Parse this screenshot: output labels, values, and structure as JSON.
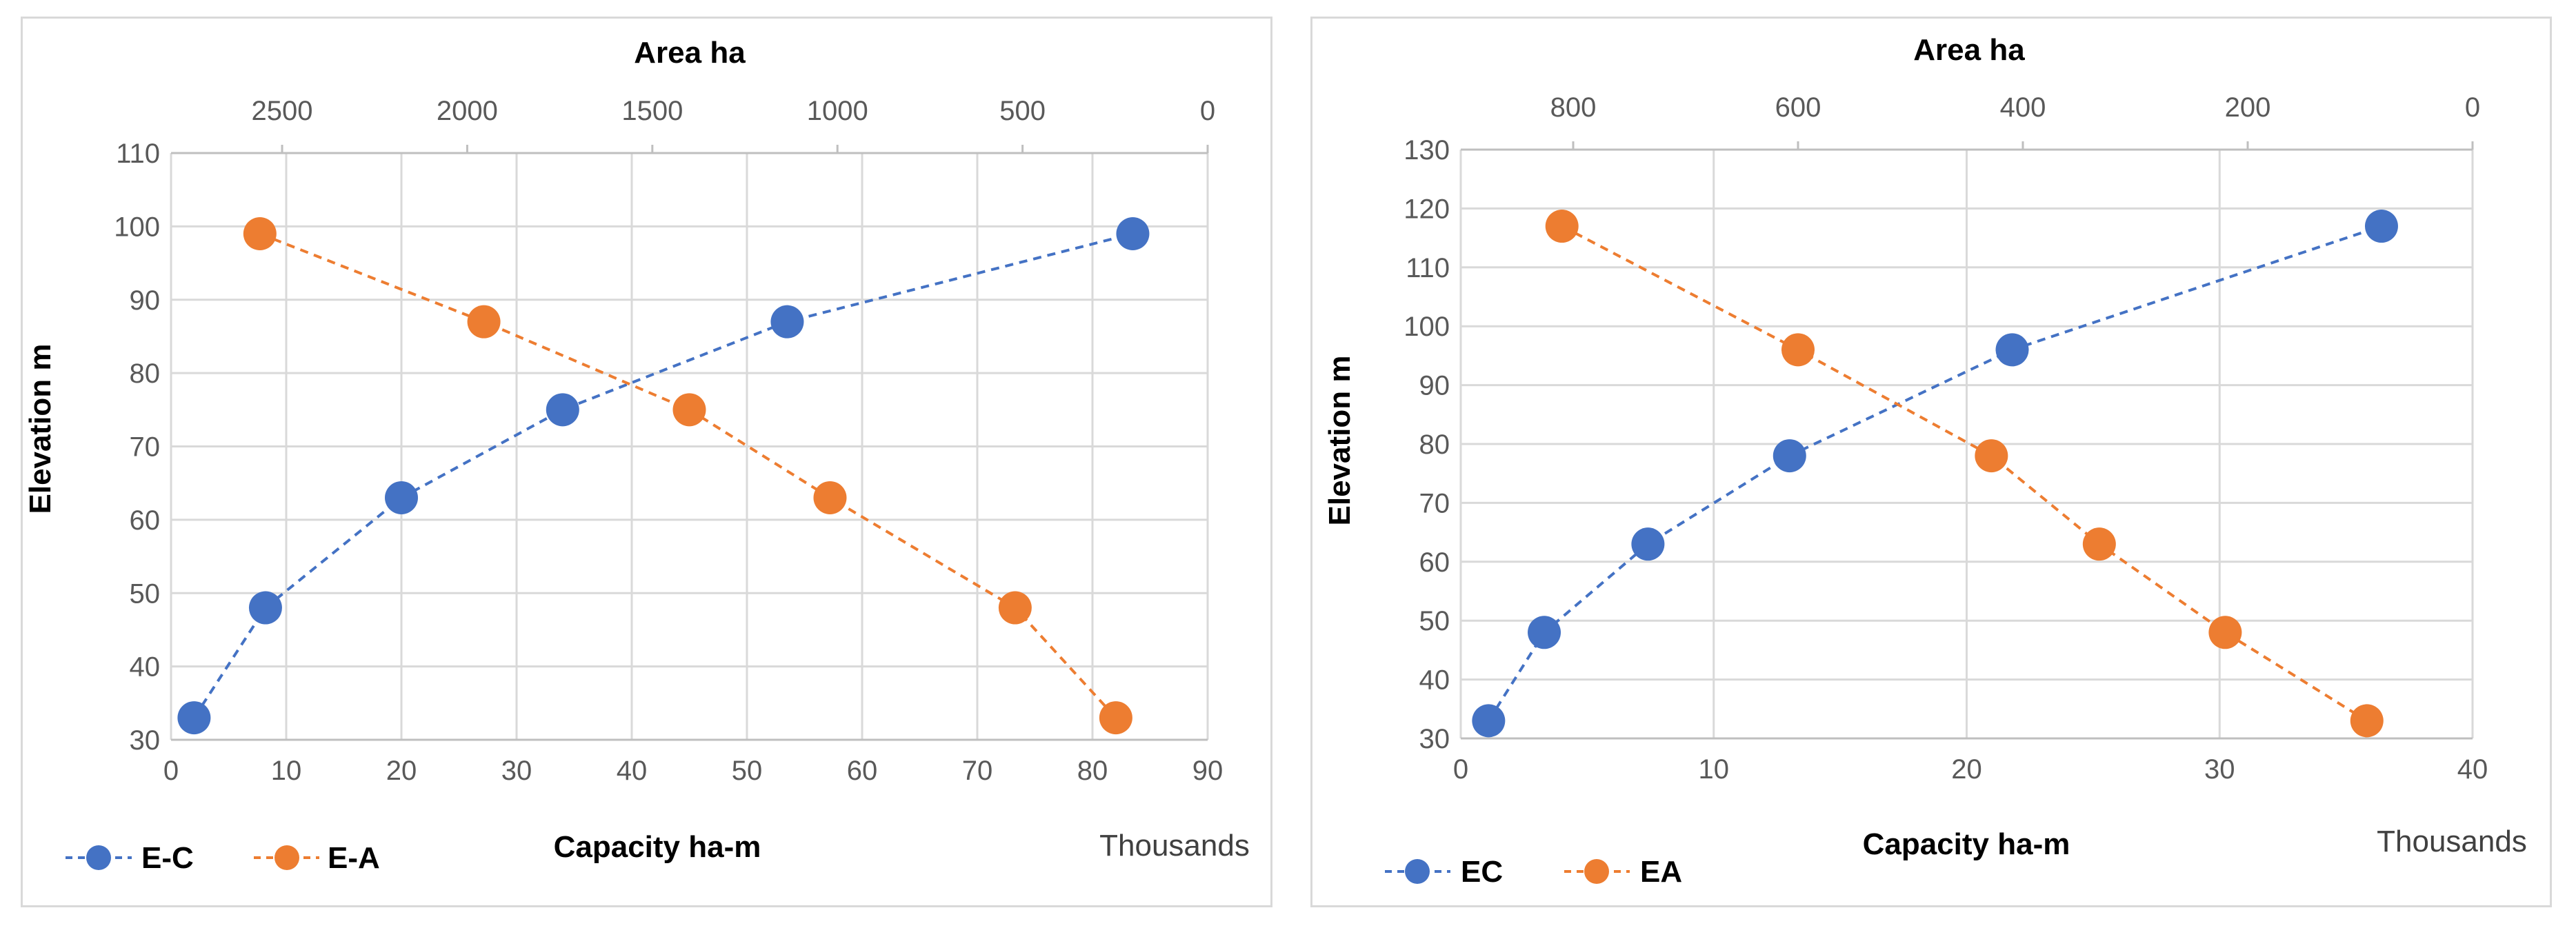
{
  "colors": {
    "series_capacity": "#4472c4",
    "series_area": "#ed7d31"
  },
  "chart_data": [
    {
      "type": "scatter",
      "xlabel": "Capacity ha-m",
      "x_units": "Thousands",
      "ylabel": "Elevation m",
      "x2label": "Area ha",
      "xlim": [
        0,
        90
      ],
      "x_ticks": [
        "0",
        "10",
        "20",
        "30",
        "40",
        "50",
        "60",
        "70",
        "80",
        "90"
      ],
      "ylim": [
        30,
        110
      ],
      "y_ticks": [
        "30",
        "40",
        "50",
        "60",
        "70",
        "80",
        "90",
        "100",
        "110"
      ],
      "x2lim": [
        0,
        2800
      ],
      "x2_ticks": [
        {
          "label": "2500",
          "value": 2500
        },
        {
          "label": "2000",
          "value": 2000
        },
        {
          "label": "1500",
          "value": 1500
        },
        {
          "label": "1000",
          "value": 1000
        },
        {
          "label": "500",
          "value": 500
        },
        {
          "label": "0",
          "value": 0
        }
      ],
      "grid": true,
      "legend_position": "bottom-left",
      "series": [
        {
          "name": "E-C",
          "axis": "bottom",
          "color": "#4472c4",
          "style": "dashed",
          "points": [
            [
              2,
              33
            ],
            [
              8.2,
              48
            ],
            [
              20,
              63
            ],
            [
              34,
              75
            ],
            [
              53.5,
              87
            ],
            [
              83.5,
              99
            ]
          ]
        },
        {
          "name": "E-A",
          "axis": "top",
          "color": "#ed7d31",
          "style": "dashed",
          "points": [
            [
              2560,
              99
            ],
            [
              1955,
              87
            ],
            [
              1400,
              75
            ],
            [
              1020,
              63
            ],
            [
              520,
              48
            ],
            [
              248,
              33
            ]
          ]
        }
      ]
    },
    {
      "type": "scatter",
      "xlabel": "Capacity ha-m",
      "x_units": "Thousands",
      "ylabel": "Elevation m",
      "x2label": "Area ha",
      "xlim": [
        0,
        40
      ],
      "x_ticks": [
        "0",
        "10",
        "20",
        "30",
        "40"
      ],
      "ylim": [
        30,
        130
      ],
      "y_ticks": [
        "30",
        "40",
        "50",
        "60",
        "70",
        "80",
        "90",
        "100",
        "110",
        "120",
        "130"
      ],
      "x2lim": [
        0,
        900
      ],
      "x2_ticks": [
        {
          "label": "800",
          "value": 800
        },
        {
          "label": "600",
          "value": 600
        },
        {
          "label": "400",
          "value": 400
        },
        {
          "label": "200",
          "value": 200
        },
        {
          "label": "0",
          "value": 0
        }
      ],
      "grid": true,
      "legend_position": "bottom-left",
      "series": [
        {
          "name": "EC",
          "axis": "bottom",
          "color": "#4472c4",
          "style": "dashed",
          "points": [
            [
              1.1,
              33
            ],
            [
              3.3,
              48
            ],
            [
              7.4,
              63
            ],
            [
              13,
              78
            ],
            [
              21.8,
              96
            ],
            [
              36.4,
              117
            ]
          ]
        },
        {
          "name": "EA",
          "axis": "top",
          "color": "#ed7d31",
          "style": "dashed",
          "points": [
            [
              810,
              117
            ],
            [
              600,
              96
            ],
            [
              428,
              78
            ],
            [
              332,
              63
            ],
            [
              220,
              48
            ],
            [
              94,
              33
            ]
          ]
        }
      ]
    }
  ]
}
